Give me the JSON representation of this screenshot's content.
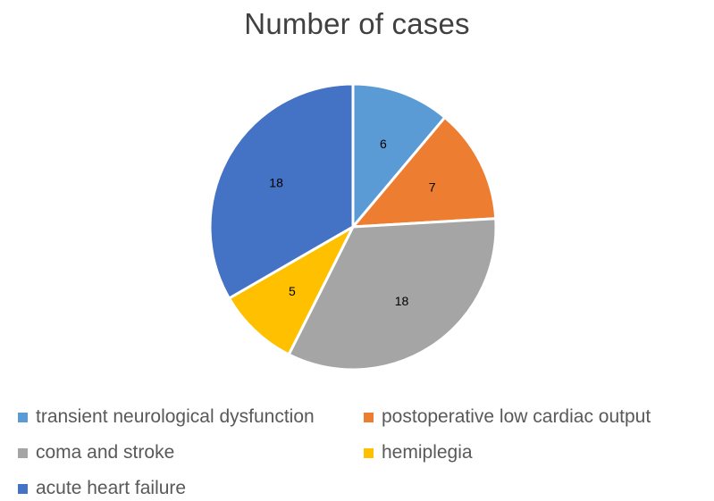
{
  "chart_data": {
    "type": "pie",
    "title": "Number of cases",
    "categories": [
      "transient neurological dysfunction",
      "postoperative low cardiac output",
      "coma and stroke",
      "hemiplegia",
      "acute heart failure"
    ],
    "values": [
      6,
      7,
      18,
      5,
      18
    ],
    "colors": [
      "#5b9bd5",
      "#ed7d31",
      "#a5a5a5",
      "#ffc000",
      "#4472c4"
    ],
    "data_labels": [
      "6",
      "7",
      "18",
      "5",
      "18"
    ],
    "start_angle_deg": 0,
    "direction": "clockwise",
    "legend_position": "bottom"
  },
  "legend": {
    "items": [
      {
        "label": "transient neurological dysfunction",
        "color": "#5b9bd5"
      },
      {
        "label": "postoperative low cardiac output",
        "color": "#ed7d31"
      },
      {
        "label": "coma and stroke",
        "color": "#a5a5a5"
      },
      {
        "label": "hemiplegia",
        "color": "#ffc000"
      },
      {
        "label": "acute heart failure",
        "color": "#4472c4"
      }
    ]
  }
}
